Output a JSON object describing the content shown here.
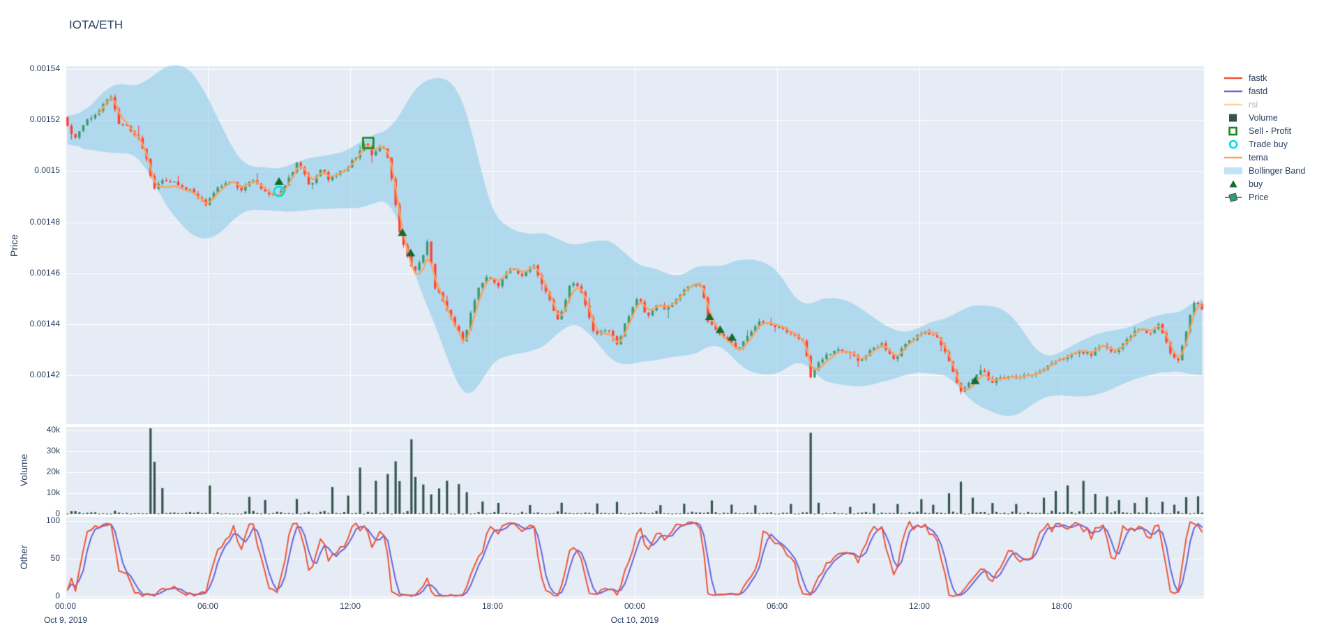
{
  "title": "IOTA/ETH",
  "colors": {
    "background": "#ffffff",
    "plot_bg": "#E5ECF6",
    "grid": "#ffffff",
    "text": "#2a3f5f",
    "faded_text": "#a9b3c2",
    "candle_up": "#3D9970",
    "candle_down": "#FF4136",
    "volume_bar": "#35544E",
    "tema": "#FEA25B",
    "bollinger_fill": "rgba(141,205,234,0.60)",
    "bollinger_swatch": "#BFE3F7",
    "fastk": "#EF553B",
    "fastd": "#6A64DB",
    "rsi": "#FFD3A0",
    "buy_marker": "#146A2E",
    "sell_marker": "#178A17",
    "trade_buy_marker": "#00DDE8"
  },
  "legend": {
    "items": [
      {
        "id": "fastk",
        "label": "fastk",
        "glyph": "line",
        "color": "#EF553B",
        "faded": false
      },
      {
        "id": "fastd",
        "label": "fastd",
        "glyph": "line",
        "color": "#6A64DB",
        "faded": false
      },
      {
        "id": "rsi",
        "label": "rsi",
        "glyph": "line",
        "color": "#FFD3A0",
        "faded": true
      },
      {
        "id": "volume",
        "label": "Volume",
        "glyph": "square",
        "color": "#35544E",
        "faded": false
      },
      {
        "id": "sell-profit",
        "label": "Sell - Profit",
        "glyph": "open-square",
        "color": "#178A17",
        "faded": false
      },
      {
        "id": "trade-buy",
        "label": "Trade buy",
        "glyph": "open-circle",
        "color": "#00DDE8",
        "faded": false
      },
      {
        "id": "tema",
        "label": "tema",
        "glyph": "line",
        "color": "#FEA25B",
        "faded": false
      },
      {
        "id": "bollinger",
        "label": "Bollinger Band",
        "glyph": "band",
        "color": "#BFE3F7",
        "faded": false
      },
      {
        "id": "buy",
        "label": "buy",
        "glyph": "triangle",
        "color": "#146A2E",
        "faded": false
      },
      {
        "id": "price",
        "label": "Price",
        "glyph": "candle",
        "color": "#3D9970",
        "faded": false
      }
    ]
  },
  "axes": {
    "x": {
      "ticks": [
        {
          "label": "00:00",
          "hour": 0
        },
        {
          "label": "06:00",
          "hour": 6
        },
        {
          "label": "12:00",
          "hour": 12
        },
        {
          "label": "18:00",
          "hour": 18
        },
        {
          "label": "00:00",
          "hour": 24
        },
        {
          "label": "06:00",
          "hour": 30
        },
        {
          "label": "12:00",
          "hour": 36
        },
        {
          "label": "18:00",
          "hour": 42
        }
      ],
      "dates": [
        {
          "label": "Oct 9, 2019",
          "hour": 0
        },
        {
          "label": "Oct 10, 2019",
          "hour": 24
        }
      ]
    },
    "price": {
      "title": "Price",
      "ticks": [
        {
          "label": "0.00154",
          "value": 0.00154
        },
        {
          "label": "0.00152",
          "value": 0.00152
        },
        {
          "label": "0.0015",
          "value": 0.0015
        },
        {
          "label": "0.00148",
          "value": 0.00148
        },
        {
          "label": "0.00146",
          "value": 0.00146
        },
        {
          "label": "0.00144",
          "value": 0.00144
        },
        {
          "label": "0.00142",
          "value": 0.00142
        }
      ]
    },
    "volume": {
      "title": "Volume",
      "ticks": [
        {
          "label": "40k",
          "value": 40000
        },
        {
          "label": "30k",
          "value": 30000
        },
        {
          "label": "20k",
          "value": 20000
        },
        {
          "label": "10k",
          "value": 10000
        },
        {
          "label": "0",
          "value": 0
        }
      ]
    },
    "other": {
      "title": "Other",
      "ticks": [
        {
          "label": "100",
          "value": 100
        },
        {
          "label": "50",
          "value": 50
        },
        {
          "label": "0",
          "value": 0
        }
      ]
    }
  },
  "chart_data": [
    {
      "type": "candlestick",
      "name": "Price",
      "x_unit": "hours since Oct 9, 2019 00:00",
      "x_range": [
        0,
        48
      ],
      "y_range": [
        0.001401,
        0.001541
      ],
      "candle_interval_minutes": 10,
      "overlays": [
        "tema",
        "Bollinger Band"
      ],
      "price_path_anchors": [
        [
          0,
          0.001521
        ],
        [
          0.25,
          0.001515
        ],
        [
          0.55,
          0.001513
        ],
        [
          0.9,
          0.001519
        ],
        [
          1.3,
          0.001522
        ],
        [
          1.7,
          0.001526
        ],
        [
          2.0,
          0.001529
        ],
        [
          2.3,
          0.001519
        ],
        [
          2.7,
          0.001517
        ],
        [
          3.1,
          0.001514
        ],
        [
          3.45,
          0.001507
        ],
        [
          3.8,
          0.001493
        ],
        [
          4.2,
          0.001496
        ],
        [
          4.8,
          0.001495
        ],
        [
          5.4,
          0.001492
        ],
        [
          6.0,
          0.001487
        ],
        [
          6.5,
          0.001493
        ],
        [
          7.0,
          0.001496
        ],
        [
          7.5,
          0.001493
        ],
        [
          8.0,
          0.001497
        ],
        [
          8.5,
          0.001492
        ],
        [
          9.0,
          0.00149
        ],
        [
          9.4,
          0.001496
        ],
        [
          9.9,
          0.001504
        ],
        [
          10.4,
          0.001493
        ],
        [
          10.85,
          0.001501
        ],
        [
          11.15,
          0.001497
        ],
        [
          11.5,
          0.001499
        ],
        [
          12.0,
          0.001501
        ],
        [
          12.4,
          0.001507
        ],
        [
          12.76,
          0.001511
        ],
        [
          13.05,
          0.001506
        ],
        [
          13.35,
          0.00151
        ],
        [
          13.6,
          0.001508
        ],
        [
          13.85,
          0.001496
        ],
        [
          14.15,
          0.001477
        ],
        [
          14.45,
          0.001468
        ],
        [
          14.75,
          0.001461
        ],
        [
          15.05,
          0.001464
        ],
        [
          15.35,
          0.001473
        ],
        [
          15.65,
          0.001455
        ],
        [
          16.0,
          0.001449
        ],
        [
          16.35,
          0.001443
        ],
        [
          16.65,
          0.001437
        ],
        [
          16.9,
          0.001433
        ],
        [
          17.2,
          0.001446
        ],
        [
          17.5,
          0.001454
        ],
        [
          17.8,
          0.001459
        ],
        [
          18.3,
          0.001455
        ],
        [
          18.8,
          0.001462
        ],
        [
          19.3,
          0.001459
        ],
        [
          19.8,
          0.001463
        ],
        [
          20.3,
          0.001453
        ],
        [
          20.9,
          0.001441
        ],
        [
          21.4,
          0.001458
        ],
        [
          21.9,
          0.001451
        ],
        [
          22.4,
          0.001436
        ],
        [
          23.0,
          0.001438
        ],
        [
          23.35,
          0.001432
        ],
        [
          23.75,
          0.001442
        ],
        [
          24.2,
          0.001451
        ],
        [
          24.6,
          0.001443
        ],
        [
          25.0,
          0.001448
        ],
        [
          25.45,
          0.001446
        ],
        [
          25.9,
          0.001451
        ],
        [
          26.4,
          0.001455
        ],
        [
          26.9,
          0.001455
        ],
        [
          27.15,
          0.001442
        ],
        [
          27.6,
          0.001437
        ],
        [
          28.1,
          0.001434
        ],
        [
          28.45,
          0.00143
        ],
        [
          28.85,
          0.001436
        ],
        [
          29.3,
          0.001441
        ],
        [
          29.8,
          0.00144
        ],
        [
          30.3,
          0.001438
        ],
        [
          30.8,
          0.001436
        ],
        [
          31.2,
          0.001434
        ],
        [
          31.5,
          0.00142
        ],
        [
          31.8,
          0.001425
        ],
        [
          32.2,
          0.001428
        ],
        [
          32.7,
          0.00143
        ],
        [
          33.2,
          0.001429
        ],
        [
          33.6,
          0.001425
        ],
        [
          34.0,
          0.00143
        ],
        [
          34.5,
          0.001432
        ],
        [
          35.0,
          0.001426
        ],
        [
          35.4,
          0.001431
        ],
        [
          35.9,
          0.001435
        ],
        [
          36.3,
          0.001438
        ],
        [
          36.8,
          0.001435
        ],
        [
          37.2,
          0.001428
        ],
        [
          37.8,
          0.001414
        ],
        [
          38.3,
          0.001419
        ],
        [
          38.7,
          0.001423
        ],
        [
          39.1,
          0.001417
        ],
        [
          39.5,
          0.00142
        ],
        [
          39.9,
          0.001419
        ],
        [
          40.5,
          0.00142
        ],
        [
          41.0,
          0.001421
        ],
        [
          41.6,
          0.001424
        ],
        [
          42.2,
          0.001427
        ],
        [
          42.8,
          0.00143
        ],
        [
          43.3,
          0.001428
        ],
        [
          43.8,
          0.001432
        ],
        [
          44.3,
          0.001429
        ],
        [
          44.8,
          0.001434
        ],
        [
          45.3,
          0.001438
        ],
        [
          45.8,
          0.001437
        ],
        [
          46.2,
          0.00144
        ],
        [
          46.6,
          0.00143
        ],
        [
          47.0,
          0.001426
        ],
        [
          47.4,
          0.00144
        ],
        [
          47.7,
          0.00145
        ],
        [
          48.0,
          0.001446
        ]
      ],
      "markers": {
        "buy": [
          [
            9.0,
            0.001496
          ],
          [
            14.2,
            0.001476
          ],
          [
            14.55,
            0.001468
          ],
          [
            27.15,
            0.001443
          ],
          [
            27.6,
            0.001438
          ],
          [
            28.1,
            0.001435
          ],
          [
            38.35,
            0.001418
          ]
        ],
        "sell_profit": [
          [
            12.76,
            0.001511
          ]
        ],
        "trade_buy": [
          [
            9.0,
            0.001492
          ]
        ]
      }
    },
    {
      "type": "bar",
      "name": "Volume",
      "y_range": [
        0,
        41500
      ],
      "baseline_range": [
        150,
        1650
      ],
      "spikes": [
        [
          3.5,
          40200
        ],
        [
          3.8,
          24300
        ],
        [
          4.05,
          11800
        ],
        [
          6.05,
          13000
        ],
        [
          7.8,
          8000
        ],
        [
          8.35,
          6200
        ],
        [
          9.7,
          7000
        ],
        [
          11.3,
          12500
        ],
        [
          11.9,
          8400
        ],
        [
          12.4,
          21800
        ],
        [
          13.1,
          15300
        ],
        [
          13.5,
          18000
        ],
        [
          13.85,
          24800
        ],
        [
          14.15,
          15000
        ],
        [
          14.5,
          34800
        ],
        [
          14.8,
          16500
        ],
        [
          15.1,
          13500
        ],
        [
          15.45,
          9200
        ],
        [
          15.7,
          12000
        ],
        [
          16.1,
          15200
        ],
        [
          16.5,
          13000
        ],
        [
          16.9,
          10200
        ],
        [
          17.5,
          5600
        ],
        [
          18.3,
          4600
        ],
        [
          19.5,
          3600
        ],
        [
          20.9,
          5200
        ],
        [
          22.4,
          4700
        ],
        [
          23.3,
          5600
        ],
        [
          25.0,
          4100
        ],
        [
          26.0,
          4600
        ],
        [
          27.2,
          5700
        ],
        [
          28.0,
          4200
        ],
        [
          29.0,
          3600
        ],
        [
          30.5,
          4100
        ],
        [
          31.45,
          38300
        ],
        [
          31.8,
          5200
        ],
        [
          33.0,
          3200
        ],
        [
          34.0,
          3600
        ],
        [
          35.0,
          4100
        ],
        [
          36.0,
          5600
        ],
        [
          36.6,
          4200
        ],
        [
          37.3,
          9600
        ],
        [
          37.8,
          15200
        ],
        [
          38.3,
          7200
        ],
        [
          39.0,
          5100
        ],
        [
          40.0,
          4600
        ],
        [
          41.2,
          6600
        ],
        [
          41.8,
          9800
        ],
        [
          42.3,
          12300
        ],
        [
          42.9,
          15600
        ],
        [
          43.4,
          9100
        ],
        [
          43.9,
          8100
        ],
        [
          44.4,
          6100
        ],
        [
          45.0,
          5100
        ],
        [
          45.6,
          7600
        ],
        [
          46.2,
          5600
        ],
        [
          46.8,
          4100
        ],
        [
          47.3,
          7800
        ],
        [
          47.7,
          8300
        ]
      ]
    },
    {
      "type": "line",
      "name": "Other",
      "y_range": [
        0,
        100
      ],
      "grid": true,
      "series": [
        {
          "name": "fastk",
          "derivation": "stochastic %K, 14 periods",
          "hidden": false
        },
        {
          "name": "fastd",
          "derivation": "3-period SMA of fastk",
          "hidden": false
        },
        {
          "name": "rsi",
          "derivation": "RSI (toggled off in legend)",
          "hidden": true
        }
      ]
    }
  ]
}
